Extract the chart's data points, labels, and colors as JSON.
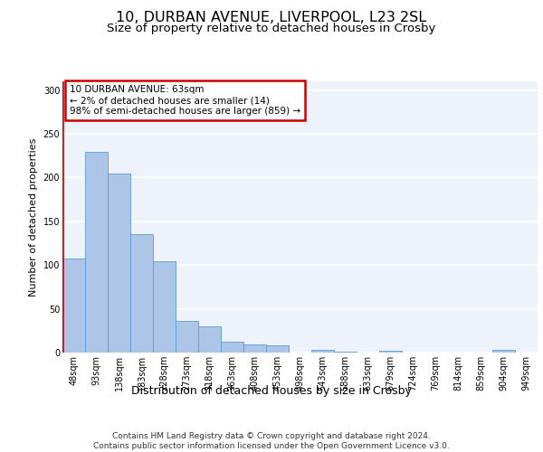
{
  "title1": "10, DURBAN AVENUE, LIVERPOOL, L23 2SL",
  "title2": "Size of property relative to detached houses in Crosby",
  "xlabel": "Distribution of detached houses by size in Crosby",
  "ylabel": "Number of detached properties",
  "categories": [
    "48sqm",
    "93sqm",
    "138sqm",
    "183sqm",
    "228sqm",
    "273sqm",
    "318sqm",
    "363sqm",
    "408sqm",
    "453sqm",
    "498sqm",
    "543sqm",
    "588sqm",
    "633sqm",
    "679sqm",
    "724sqm",
    "769sqm",
    "814sqm",
    "859sqm",
    "904sqm",
    "949sqm"
  ],
  "values": [
    107,
    229,
    205,
    135,
    104,
    36,
    30,
    12,
    9,
    8,
    0,
    3,
    1,
    0,
    2,
    0,
    0,
    0,
    0,
    3,
    0
  ],
  "bar_color": "#adc6e8",
  "bar_edge_color": "#5b9bd5",
  "highlight_line_color": "#cc0000",
  "annotation_text": "10 DURBAN AVENUE: 63sqm\n← 2% of detached houses are smaller (14)\n98% of semi-detached houses are larger (859) →",
  "annotation_box_color": "#ffffff",
  "annotation_box_edge_color": "#cc0000",
  "ylim": [
    0,
    310
  ],
  "yticks": [
    0,
    50,
    100,
    150,
    200,
    250,
    300
  ],
  "footer_text": "Contains HM Land Registry data © Crown copyright and database right 2024.\nContains public sector information licensed under the Open Government Licence v3.0.",
  "background_color": "#edf2fb",
  "grid_color": "#ffffff",
  "title1_fontsize": 11.5,
  "title2_fontsize": 9.5,
  "xlabel_fontsize": 9,
  "ylabel_fontsize": 8,
  "tick_fontsize": 7,
  "ann_fontsize": 7.5,
  "footer_fontsize": 6.5
}
